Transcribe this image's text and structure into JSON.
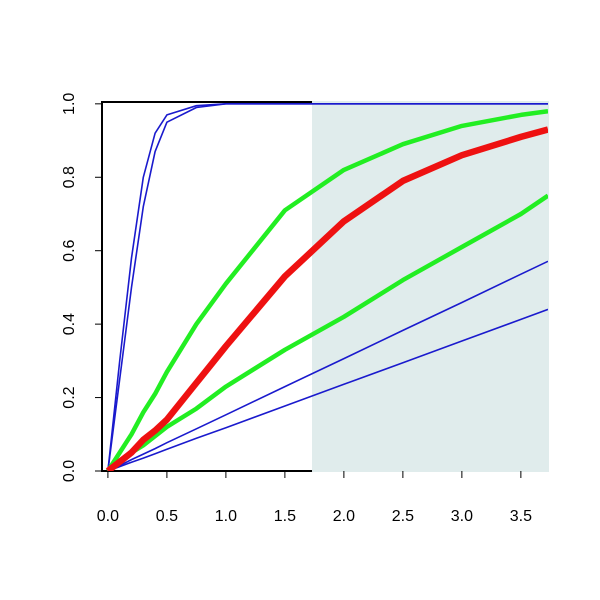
{
  "chart_data": {
    "type": "line",
    "x": [
      0,
      0.1,
      0.2,
      0.3,
      0.4,
      0.5,
      0.75,
      1,
      1.5,
      2,
      2.5,
      3,
      3.5,
      3.73
    ],
    "series": [
      {
        "color": "#1a1acd",
        "width": 1.6,
        "values": [
          0,
          0.3,
          0.58,
          0.8,
          0.92,
          0.97,
          0.995,
          1,
          1,
          1,
          1,
          1,
          1,
          1
        ]
      },
      {
        "color": "#1a1acd",
        "width": 1.6,
        "values": [
          0,
          0.25,
          0.5,
          0.72,
          0.87,
          0.95,
          0.99,
          1,
          1,
          1,
          1,
          1,
          1,
          1
        ]
      },
      {
        "color": "#1a1acd",
        "width": 1.6,
        "values": [
          0,
          0.015,
          0.031,
          0.046,
          0.061,
          0.077,
          0.115,
          0.153,
          0.23,
          0.306,
          0.383,
          0.459,
          0.536,
          0.571
        ]
      },
      {
        "color": "#1a1acd",
        "width": 1.6,
        "values": [
          0,
          0.012,
          0.024,
          0.035,
          0.047,
          0.059,
          0.089,
          0.118,
          0.177,
          0.236,
          0.295,
          0.354,
          0.413,
          0.44
        ]
      },
      {
        "color": "#22ee22",
        "width": 4.5,
        "values": [
          0,
          0.05,
          0.1,
          0.16,
          0.21,
          0.27,
          0.4,
          0.51,
          0.71,
          0.82,
          0.89,
          0.94,
          0.97,
          0.98
        ]
      },
      {
        "color": "#22ee22",
        "width": 4.5,
        "values": [
          0,
          0.025,
          0.05,
          0.07,
          0.095,
          0.12,
          0.17,
          0.23,
          0.33,
          0.42,
          0.52,
          0.61,
          0.7,
          0.75
        ]
      },
      {
        "color": "#ee1111",
        "width": 6.5,
        "values": [
          0,
          0.025,
          0.05,
          0.085,
          0.11,
          0.14,
          0.24,
          0.34,
          0.53,
          0.68,
          0.79,
          0.86,
          0.91,
          0.93
        ]
      }
    ],
    "shaded_region": [
      1.73,
      3.73
    ],
    "shade_color": "#e0ecec",
    "xlim": [
      -0.05,
      3.73
    ],
    "ylim": [
      0,
      1.005
    ],
    "xticks": [
      {
        "value": 0,
        "label": "0.0"
      },
      0.5,
      {
        "value": 1,
        "label": "1.0"
      },
      1.5,
      {
        "value": 2,
        "label": "2.0"
      },
      2.5,
      {
        "value": 3,
        "label": "3.0"
      },
      3.5
    ],
    "yticks": [
      {
        "value": 0,
        "label": "0.0"
      },
      0.2,
      0.4,
      0.6,
      0.8,
      {
        "value": 1,
        "label": "1.0"
      }
    ]
  }
}
